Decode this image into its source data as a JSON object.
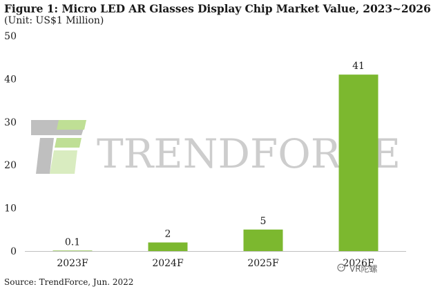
{
  "chart_data": {
    "type": "bar",
    "title": "Figure 1: Micro LED AR Glasses Display Chip Market Value, 2023~2026",
    "unit": "(Unit: US$1 Million)",
    "categories": [
      "2023F",
      "2024F",
      "2025F",
      "2026F"
    ],
    "values": [
      0.1,
      2,
      5,
      41
    ],
    "data_labels": [
      "0.1",
      "2",
      "5",
      "41"
    ],
    "ylim": [
      0,
      50
    ],
    "yticks": [
      0,
      10,
      20,
      30,
      40,
      50
    ],
    "xlabel": "",
    "ylabel": "",
    "grid": false,
    "bar_color": "#7cb82f",
    "source": "Source: TrendForce, Jun. 2022"
  },
  "watermark": {
    "brand": "TRENDFORCE",
    "credit": "VR陀螺"
  },
  "colors": {
    "bar": "#7cb82f",
    "axis": "#bfbfbf",
    "watermark_green": "#8cc63f",
    "watermark_gray": "#9e9e9e"
  }
}
